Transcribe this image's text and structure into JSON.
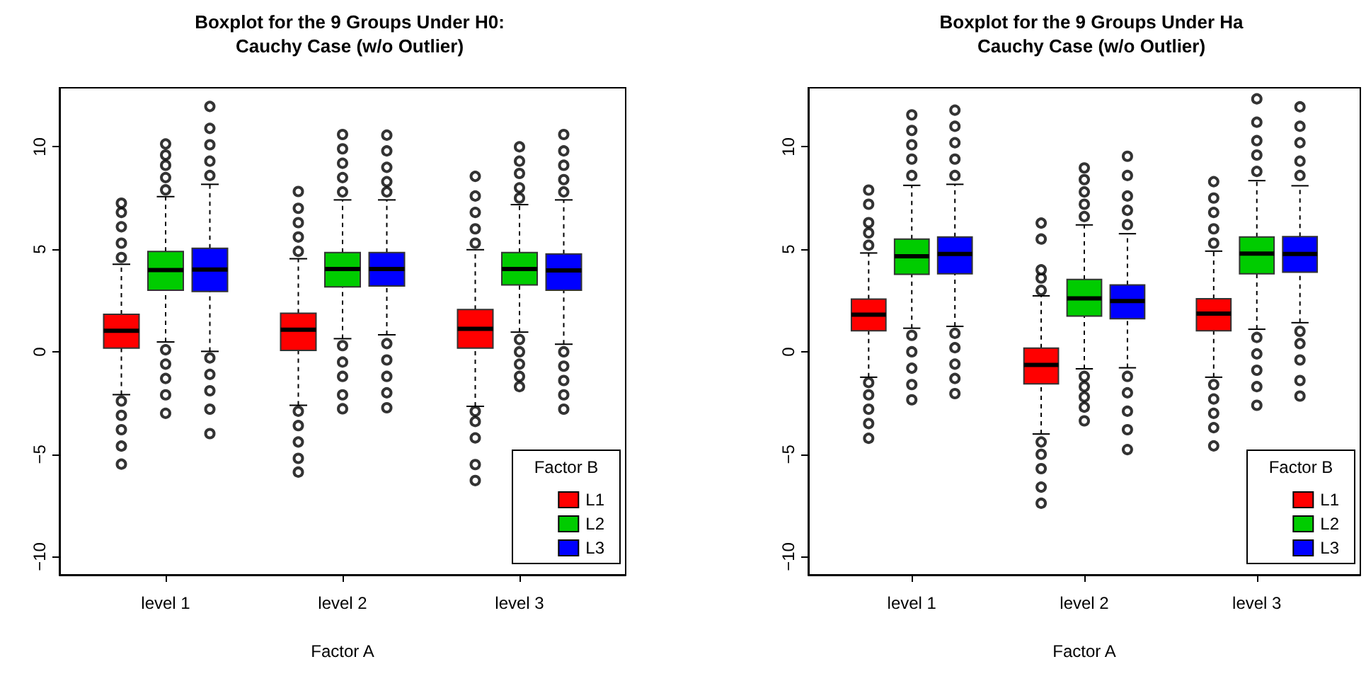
{
  "chart_data": [
    {
      "type": "box",
      "title": "Boxplot for the 9 Groups Under H0:\nCauchy Case (w/o Outlier)",
      "xlabel": "Factor A",
      "categories": [
        "level 1",
        "level 2",
        "level 3"
      ],
      "ylim": [
        -10.88,
        12.88
      ],
      "yticks": [
        -10,
        -5,
        0,
        5,
        10
      ],
      "grid": false,
      "legend": "bottom right",
      "legend_title": "Factor B",
      "series": [
        {
          "name": "L1",
          "color": "#ff0000",
          "boxes": [
            {
              "low": -2.09,
              "q1": 0.18,
              "median": 1.03,
              "q3": 1.83,
              "high": 4.27,
              "outliers": [
                4.6,
                5.3,
                6.1,
                6.8,
                7.25,
                -2.4,
                -3.1,
                -3.8,
                -4.6,
                -5.48
              ]
            },
            {
              "low": -2.61,
              "q1": 0.07,
              "median": 1.08,
              "q3": 1.88,
              "high": 4.54,
              "outliers": [
                4.9,
                5.6,
                6.3,
                7.0,
                7.82,
                -2.9,
                -3.6,
                -4.4,
                -5.2,
                -5.87
              ]
            },
            {
              "low": -2.66,
              "q1": 0.18,
              "median": 1.12,
              "q3": 2.06,
              "high": 4.98,
              "outliers": [
                5.3,
                6.0,
                6.8,
                7.6,
                8.56,
                -2.9,
                -3.4,
                -4.2,
                -5.5,
                -6.28
              ]
            }
          ]
        },
        {
          "name": "L2",
          "color": "#00cc00",
          "boxes": [
            {
              "low": 0.48,
              "q1": 3.0,
              "median": 3.99,
              "q3": 4.89,
              "high": 7.57,
              "outliers": [
                7.9,
                8.5,
                9.1,
                9.6,
                10.14,
                0.1,
                -0.6,
                -1.3,
                -2.1,
                -3.0
              ]
            },
            {
              "low": 0.64,
              "q1": 3.17,
              "median": 4.04,
              "q3": 4.84,
              "high": 7.41,
              "outliers": [
                7.8,
                8.5,
                9.2,
                9.9,
                10.6,
                0.3,
                -0.5,
                -1.2,
                -2.1,
                -2.78
              ]
            },
            {
              "low": 0.96,
              "q1": 3.26,
              "median": 4.04,
              "q3": 4.84,
              "high": 7.18,
              "outliers": [
                7.5,
                8.0,
                8.7,
                9.3,
                10.0,
                0.6,
                0.0,
                -0.6,
                -1.2,
                -1.7
              ]
            }
          ]
        },
        {
          "name": "L3",
          "color": "#0000ff",
          "boxes": [
            {
              "low": 0.02,
              "q1": 2.94,
              "median": 4.01,
              "q3": 5.05,
              "high": 8.17,
              "outliers": [
                8.6,
                9.3,
                10.1,
                10.9,
                11.97,
                -0.3,
                -1.1,
                -1.9,
                -2.8,
                -3.99
              ]
            },
            {
              "low": 0.83,
              "q1": 3.21,
              "median": 4.04,
              "q3": 4.84,
              "high": 7.41,
              "outliers": [
                7.8,
                8.3,
                9.0,
                9.8,
                10.57,
                0.4,
                -0.4,
                -1.2,
                -2.0,
                -2.73
              ]
            },
            {
              "low": 0.37,
              "q1": 3.0,
              "median": 3.97,
              "q3": 4.77,
              "high": 7.41,
              "outliers": [
                7.8,
                8.4,
                9.1,
                9.8,
                10.6,
                0.0,
                -0.7,
                -1.4,
                -2.1,
                -2.8
              ]
            }
          ]
        }
      ]
    },
    {
      "type": "box",
      "title": "Boxplot for the 9 Groups Under Ha\nCauchy Case (w/o Outlier)",
      "xlabel": "Factor A",
      "categories": [
        "level 1",
        "level 2",
        "level 3"
      ],
      "ylim": [
        -10.88,
        12.88
      ],
      "yticks": [
        -10,
        -5,
        0,
        5,
        10
      ],
      "grid": false,
      "legend": "bottom right",
      "legend_title": "Factor B",
      "series": [
        {
          "name": "L1",
          "color": "#ff0000",
          "boxes": [
            {
              "low": -1.24,
              "q1": 1.03,
              "median": 1.81,
              "q3": 2.57,
              "high": 4.82,
              "outliers": [
                5.2,
                5.8,
                6.3,
                7.2,
                7.89,
                -1.5,
                -2.1,
                -2.8,
                -3.5,
                -4.22
              ]
            },
            {
              "low": -4.01,
              "q1": -1.56,
              "median": -0.64,
              "q3": 0.18,
              "high": 2.73,
              "outliers": [
                3.0,
                3.6,
                4.0,
                5.5,
                6.28,
                -4.4,
                -5.0,
                -5.7,
                -6.6,
                -7.39
              ]
            },
            {
              "low": -1.24,
              "q1": 1.03,
              "median": 1.86,
              "q3": 2.59,
              "high": 4.91,
              "outliers": [
                5.3,
                6.0,
                6.8,
                7.5,
                8.3,
                -1.6,
                -2.3,
                -3.0,
                -3.7,
                -4.59
              ]
            }
          ]
        },
        {
          "name": "L2",
          "color": "#00cc00",
          "boxes": [
            {
              "low": 1.15,
              "q1": 3.78,
              "median": 4.66,
              "q3": 5.5,
              "high": 8.12,
              "outliers": [
                8.6,
                9.4,
                10.1,
                10.8,
                11.56,
                0.8,
                0.0,
                -0.8,
                -1.6,
                -2.34
              ]
            },
            {
              "low": -0.83,
              "q1": 1.74,
              "median": 2.61,
              "q3": 3.53,
              "high": 6.19,
              "outliers": [
                6.6,
                7.2,
                7.8,
                8.4,
                8.97,
                -1.2,
                -1.7,
                -2.2,
                -2.7,
                -3.37
              ]
            },
            {
              "low": 1.1,
              "q1": 3.81,
              "median": 4.79,
              "q3": 5.6,
              "high": 8.35,
              "outliers": [
                8.8,
                9.6,
                10.3,
                11.2,
                12.34,
                0.7,
                -0.1,
                -0.9,
                -1.7,
                -2.61
              ]
            }
          ]
        },
        {
          "name": "L3",
          "color": "#0000ff",
          "boxes": [
            {
              "low": 1.24,
              "q1": 3.81,
              "median": 4.77,
              "q3": 5.6,
              "high": 8.17,
              "outliers": [
                8.6,
                9.4,
                10.2,
                11.0,
                11.79,
                0.9,
                0.2,
                -0.6,
                -1.3,
                -2.04
              ]
            },
            {
              "low": -0.78,
              "q1": 1.61,
              "median": 2.48,
              "q3": 3.26,
              "high": 5.76,
              "outliers": [
                6.2,
                6.9,
                7.6,
                8.6,
                9.54,
                -1.2,
                -2.0,
                -2.9,
                -3.8,
                -4.77
              ]
            },
            {
              "low": 1.42,
              "q1": 3.88,
              "median": 4.77,
              "q3": 5.62,
              "high": 8.1,
              "outliers": [
                8.6,
                9.3,
                10.2,
                11.0,
                11.95,
                1.0,
                0.4,
                -0.4,
                -1.4,
                -2.16
              ]
            }
          ]
        }
      ]
    }
  ]
}
